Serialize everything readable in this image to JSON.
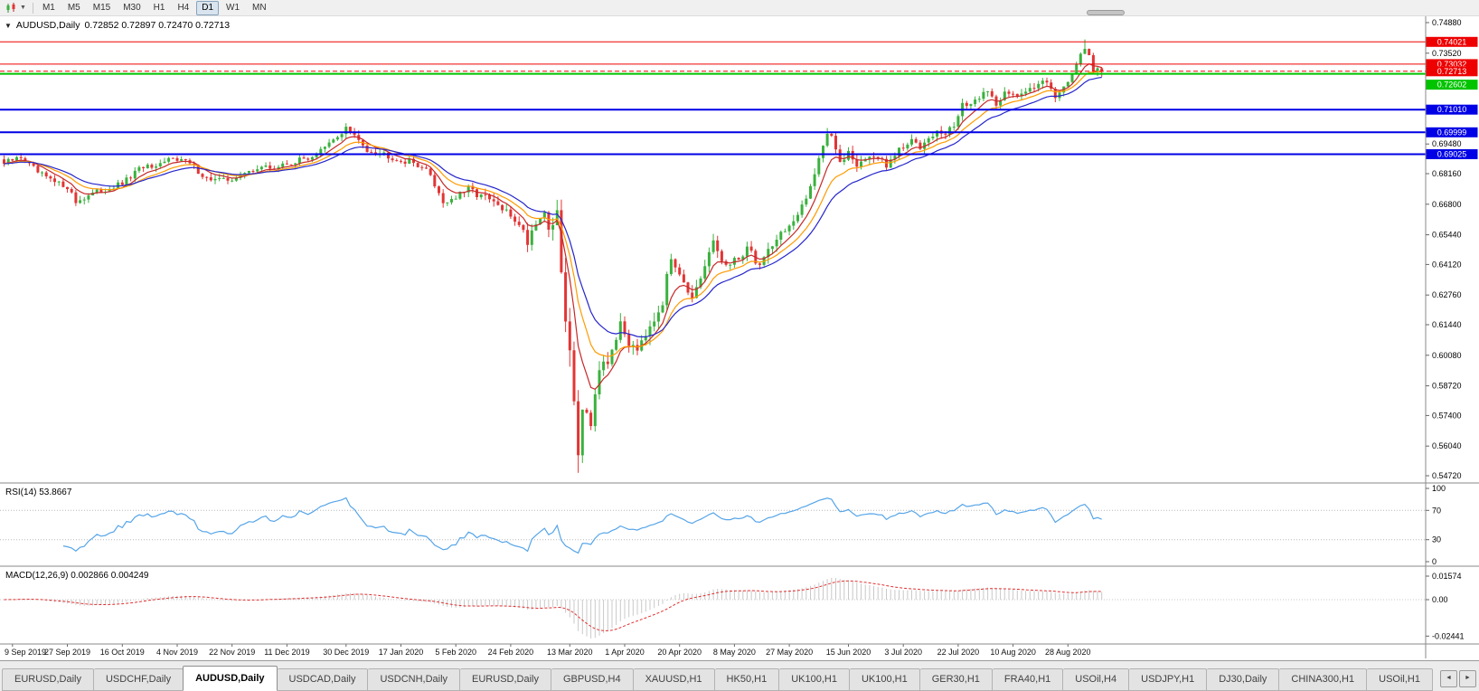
{
  "toolbar": {
    "timeframes": [
      "M1",
      "M5",
      "M15",
      "M30",
      "H1",
      "H4",
      "D1",
      "W1",
      "MN"
    ],
    "active_timeframe": "D1"
  },
  "chart": {
    "symbol_period": "AUDUSD,Daily",
    "ohlc_text": "0.72852 0.72897 0.72470 0.72713",
    "last_bar_ohlc": [
      0.72852,
      0.72897,
      0.7247,
      0.72713
    ],
    "dropdown_caret": "▼",
    "price_axis": {
      "range": {
        "top": 0.7516,
        "bottom": 0.544
      },
      "ticks": [
        "0.74880",
        "0.73520",
        "0.69480",
        "0.68160",
        "0.66800",
        "0.65440",
        "0.64120",
        "0.62760",
        "0.61440",
        "0.60080",
        "0.58720",
        "0.57400",
        "0.56040",
        "0.54720"
      ]
    },
    "levels": [
      {
        "price": 0.74021,
        "label": "0.74021",
        "color": "#ee0000",
        "width": 1,
        "style": "solid",
        "label_dy": 0
      },
      {
        "price": 0.73032,
        "label": "0.73032",
        "color": "#ee0000",
        "width": 1,
        "style": "solid",
        "label_dy": 0
      },
      {
        "price": 0.72713,
        "label": "0.72713",
        "color": "#ee0000",
        "width": 1,
        "style": "dash",
        "label_dy": 0
      },
      {
        "price": 0.72602,
        "label": "0.72602",
        "color": "#00c400",
        "width": 2,
        "style": "solid",
        "label_dy": 12
      },
      {
        "price": 0.7101,
        "label": "0.71010",
        "color": "#0000e6",
        "width": 2,
        "style": "solid",
        "label_dy": 0
      },
      {
        "price": 0.69999,
        "label": "0.69999",
        "color": "#0000e6",
        "width": 2,
        "style": "solid",
        "label_dy": 0
      },
      {
        "price": 0.69025,
        "label": "0.69025",
        "color": "#0000e6",
        "width": 2,
        "style": "solid",
        "label_dy": 0
      }
    ],
    "colors": {
      "up": "#3ab13e",
      "down": "#e23535",
      "ma_fast": "#c62828",
      "ma_mid": "#ff9a00",
      "ma_slow": "#2626cc",
      "rsi": "#56a5e8",
      "macd_hist": "#c8c8c8",
      "macd_signal": "#e03030",
      "panel_border": "#8a8a8a",
      "axis_text": "#000000"
    }
  },
  "chart_data": {
    "type": "candlestick",
    "symbol": "AUDUSD",
    "period": "Daily",
    "bars": 261,
    "price_anchors": [
      [
        0,
        0.686
      ],
      [
        4,
        0.689
      ],
      [
        8,
        0.682
      ],
      [
        12,
        0.6775
      ],
      [
        15,
        0.676
      ],
      [
        17,
        0.669
      ],
      [
        20,
        0.672
      ],
      [
        24,
        0.6745
      ],
      [
        28,
        0.677
      ],
      [
        33,
        0.685
      ],
      [
        36,
        0.6835
      ],
      [
        40,
        0.6895
      ],
      [
        44,
        0.686
      ],
      [
        48,
        0.6795
      ],
      [
        52,
        0.6785
      ],
      [
        56,
        0.6805
      ],
      [
        60,
        0.6845
      ],
      [
        64,
        0.684
      ],
      [
        68,
        0.6865
      ],
      [
        72,
        0.6885
      ],
      [
        76,
        0.693
      ],
      [
        79,
        0.698
      ],
      [
        81,
        0.702
      ],
      [
        84,
        0.696
      ],
      [
        86,
        0.6925
      ],
      [
        90,
        0.6905
      ],
      [
        94,
        0.6875
      ],
      [
        98,
        0.686
      ],
      [
        101,
        0.681
      ],
      [
        104,
        0.669
      ],
      [
        107,
        0.671
      ],
      [
        110,
        0.6745
      ],
      [
        113,
        0.672
      ],
      [
        116,
        0.6685
      ],
      [
        119,
        0.664
      ],
      [
        122,
        0.66
      ],
      [
        124,
        0.6515
      ],
      [
        126,
        0.661
      ],
      [
        128,
        0.664
      ],
      [
        129,
        0.658
      ],
      [
        131,
        0.662
      ],
      [
        133,
        0.615
      ],
      [
        134,
        0.6
      ],
      [
        135,
        0.585
      ],
      [
        136,
        0.56
      ],
      [
        137,
        0.5745
      ],
      [
        138,
        0.58
      ],
      [
        139,
        0.57
      ],
      [
        140,
        0.583
      ],
      [
        141,
        0.59
      ],
      [
        143,
        0.597
      ],
      [
        145,
        0.61
      ],
      [
        146,
        0.613
      ],
      [
        148,
        0.607
      ],
      [
        150,
        0.605
      ],
      [
        152,
        0.612
      ],
      [
        154,
        0.618
      ],
      [
        156,
        0.625
      ],
      [
        158,
        0.644
      ],
      [
        160,
        0.639
      ],
      [
        162,
        0.63
      ],
      [
        163,
        0.625
      ],
      [
        165,
        0.633
      ],
      [
        167,
        0.646
      ],
      [
        168,
        0.651
      ],
      [
        170,
        0.643
      ],
      [
        172,
        0.64
      ],
      [
        174,
        0.644
      ],
      [
        176,
        0.649
      ],
      [
        178,
        0.643
      ],
      [
        179,
        0.641
      ],
      [
        181,
        0.648
      ],
      [
        183,
        0.653
      ],
      [
        185,
        0.657
      ],
      [
        187,
        0.66
      ],
      [
        188,
        0.662
      ],
      [
        190,
        0.67
      ],
      [
        192,
        0.683
      ],
      [
        194,
        0.695
      ],
      [
        195,
        0.7
      ],
      [
        196,
        0.699
      ],
      [
        198,
        0.685
      ],
      [
        200,
        0.692
      ],
      [
        202,
        0.686
      ],
      [
        204,
        0.688
      ],
      [
        206,
        0.69
      ],
      [
        208,
        0.687
      ],
      [
        209,
        0.684
      ],
      [
        211,
        0.69
      ],
      [
        213,
        0.693
      ],
      [
        215,
        0.696
      ],
      [
        217,
        0.694
      ],
      [
        219,
        0.699
      ],
      [
        221,
        0.7
      ],
      [
        223,
        0.699
      ],
      [
        225,
        0.703
      ],
      [
        227,
        0.713
      ],
      [
        229,
        0.711
      ],
      [
        231,
        0.716
      ],
      [
        233,
        0.719
      ],
      [
        235,
        0.712
      ],
      [
        237,
        0.719
      ],
      [
        239,
        0.717
      ],
      [
        240,
        0.715
      ],
      [
        242,
        0.718
      ],
      [
        244,
        0.721
      ],
      [
        246,
        0.724
      ],
      [
        248,
        0.719
      ],
      [
        249,
        0.716
      ],
      [
        251,
        0.721
      ],
      [
        253,
        0.726
      ],
      [
        254,
        0.729
      ],
      [
        256,
        0.738
      ],
      [
        257,
        0.734
      ],
      [
        258,
        0.728
      ],
      [
        259,
        0.72852
      ],
      [
        260,
        0.72713
      ]
    ],
    "volatility_anchors": [
      [
        0,
        0.003
      ],
      [
        80,
        0.003
      ],
      [
        100,
        0.0035
      ],
      [
        120,
        0.0045
      ],
      [
        128,
        0.006
      ],
      [
        132,
        0.01
      ],
      [
        137,
        0.0135
      ],
      [
        142,
        0.01
      ],
      [
        148,
        0.007
      ],
      [
        158,
        0.0055
      ],
      [
        170,
        0.0048
      ],
      [
        190,
        0.0045
      ],
      [
        210,
        0.004
      ],
      [
        230,
        0.0034
      ],
      [
        260,
        0.0032
      ]
    ],
    "special": {
      "spike_low_bar": 136,
      "spike_low": 0.5485,
      "spike_high_bar": 256,
      "spike_high": 0.7413
    },
    "date_labels": [
      {
        "bar": 2,
        "text": "9 Sep 2019"
      },
      {
        "bar": 15,
        "text": "27 Sep 2019"
      },
      {
        "bar": 28,
        "text": "16 Oct 2019"
      },
      {
        "bar": 41,
        "text": "4 Nov 2019"
      },
      {
        "bar": 54,
        "text": "22 Nov 2019"
      },
      {
        "bar": 67,
        "text": "11 Dec 2019"
      },
      {
        "bar": 81,
        "text": "30 Dec 2019"
      },
      {
        "bar": 94,
        "text": "17 Jan 2020"
      },
      {
        "bar": 107,
        "text": "5 Feb 2020"
      },
      {
        "bar": 120,
        "text": "24 Feb 2020"
      },
      {
        "bar": 134,
        "text": "13 Mar 2020"
      },
      {
        "bar": 147,
        "text": "1 Apr 2020"
      },
      {
        "bar": 160,
        "text": "20 Apr 2020"
      },
      {
        "bar": 173,
        "text": "8 May 2020"
      },
      {
        "bar": 186,
        "text": "27 May 2020"
      },
      {
        "bar": 200,
        "text": "15 Jun 2020"
      },
      {
        "bar": 213,
        "text": "3 Jul 2020"
      },
      {
        "bar": 226,
        "text": "22 Jul 2020"
      },
      {
        "bar": 239,
        "text": "10 Aug 2020"
      },
      {
        "bar": 252,
        "text": "28 Aug 2020"
      }
    ],
    "indicators": {
      "moving_averages": [
        {
          "period": 7,
          "color_key": "ma_fast"
        },
        {
          "period": 13,
          "color_key": "ma_mid"
        },
        {
          "period": 20,
          "color_key": "ma_slow"
        }
      ],
      "rsi": {
        "name": "RSI(14)",
        "period": 14,
        "value_text": "53.8667",
        "axis_labels": [
          "100",
          "70",
          "30",
          "0"
        ],
        "axis_values": [
          100,
          70,
          30,
          0
        ],
        "level_lines": [
          70,
          30
        ]
      },
      "macd": {
        "name": "MACD(12,26,9)",
        "fast": 12,
        "slow": 26,
        "signal": 9,
        "values_text": "0.002866 0.004249",
        "axis_labels": [
          "0.01574",
          "0.00",
          "-0.02441"
        ],
        "axis_values": [
          0.01574,
          0.0,
          -0.02441
        ]
      }
    }
  },
  "tabs": {
    "items": [
      "EURUSD,Daily",
      "USDCHF,Daily",
      "AUDUSD,Daily",
      "USDCAD,Daily",
      "USDCNH,Daily",
      "EURUSD,Daily",
      "GBPUSD,H4",
      "XAUUSD,H1",
      "HK50,H1",
      "UK100,H1",
      "UK100,H1",
      "GER30,H1",
      "FRA40,H1",
      "USOil,H4",
      "USDJPY,H1",
      "DJ30,Daily",
      "CHINA300,H1",
      "USOil,H1"
    ],
    "active_index": 2,
    "scroll_left": "◄",
    "scroll_right": "►"
  }
}
